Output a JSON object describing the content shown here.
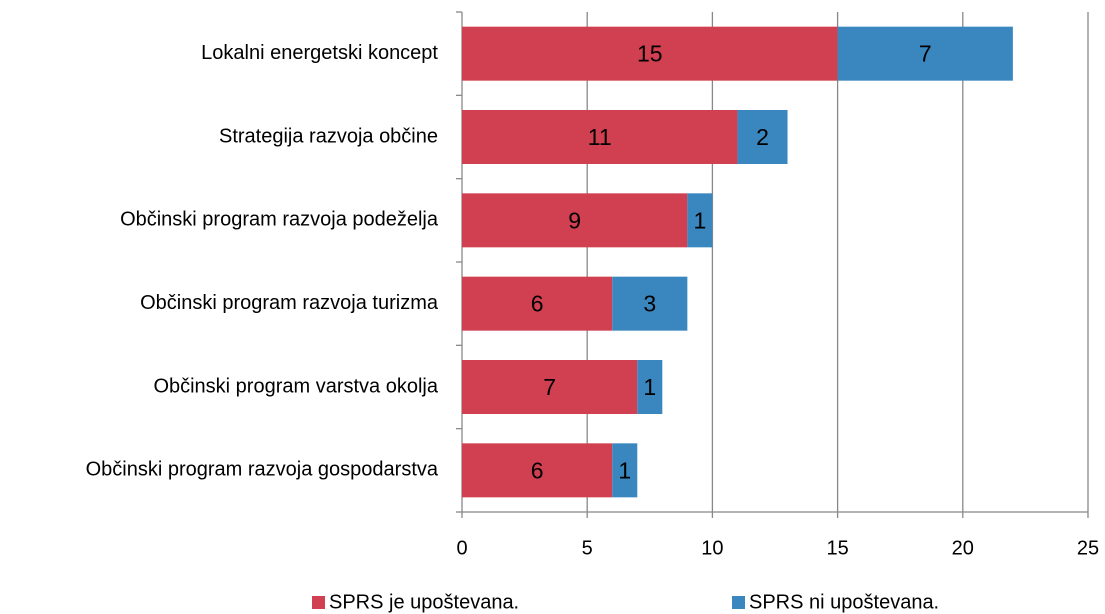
{
  "chart_data": {
    "type": "stacked_barh",
    "categories": [
      "Lokalni energetski koncept",
      "Strategija razvoja občine",
      "Občinski program razvoja podeželja",
      "Občinski program razvoja turizma",
      "Občinski program varstva okolja",
      "Občinski program razvoja gospodarstva"
    ],
    "series": [
      {
        "name": "SPRS je upoštevana.",
        "color": "#d04050",
        "values": [
          15,
          11,
          9,
          6,
          7,
          6
        ]
      },
      {
        "name": "SPRS ni upoštevana.",
        "color": "#3a87c0",
        "values": [
          7,
          2,
          1,
          3,
          1,
          1
        ]
      }
    ],
    "xlim": [
      0,
      25
    ],
    "xticks": [
      0,
      5,
      10,
      15,
      20,
      25
    ],
    "grid": true,
    "legend": "bottom"
  }
}
